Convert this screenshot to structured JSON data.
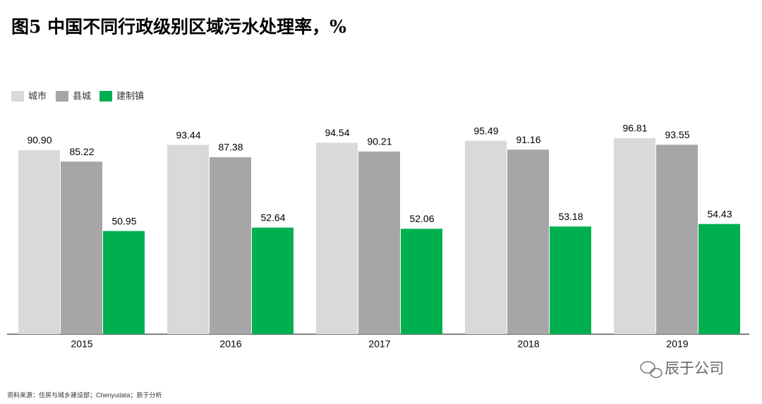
{
  "chart_data": {
    "type": "bar",
    "title": "图5 中国不同行政级别区域污水处理率，%",
    "categories": [
      "2015",
      "2016",
      "2017",
      "2018",
      "2019"
    ],
    "series": [
      {
        "name": "城市",
        "color": "#d9d9d9",
        "values": [
          90.9,
          93.44,
          94.54,
          95.49,
          96.81
        ],
        "value_labels": [
          "90.90",
          "93.44",
          "94.54",
          "95.49",
          "96.81"
        ]
      },
      {
        "name": "县城",
        "color": "#a6a6a6",
        "values": [
          85.22,
          87.38,
          90.21,
          91.16,
          93.55
        ],
        "value_labels": [
          "85.22",
          "87.38",
          "90.21",
          "91.16",
          "93.55"
        ]
      },
      {
        "name": "建制镇",
        "color": "#00b050",
        "values": [
          50.95,
          52.64,
          52.06,
          53.18,
          54.43
        ],
        "value_labels": [
          "50.95",
          "52.64",
          "52.06",
          "53.18",
          "54.43"
        ]
      }
    ],
    "source": "资料来源：住房与城乡建设部；Chenyudata；辰于分析",
    "watermark": "辰于公司"
  }
}
